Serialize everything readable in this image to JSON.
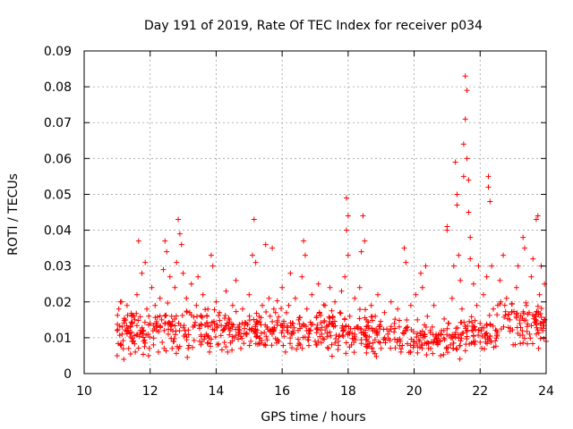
{
  "chart_data": {
    "type": "scatter",
    "title": "Day 191 of 2019, Rate Of TEC Index for receiver p034",
    "xlabel": "GPS time / hours",
    "ylabel": "ROTI / TECUs",
    "xlim": [
      10,
      24
    ],
    "ylim": [
      0,
      0.09
    ],
    "xticks": [
      10,
      12,
      14,
      16,
      18,
      20,
      22,
      24
    ],
    "xtick_labels": [
      "10",
      "12",
      "14",
      "16",
      "18",
      "20",
      "22",
      "24"
    ],
    "yticks": [
      0,
      0.01,
      0.02,
      0.03,
      0.04,
      0.05,
      0.06,
      0.07,
      0.08,
      0.09
    ],
    "ytick_labels": [
      "0",
      "0.01",
      "0.02",
      "0.03",
      "0.04",
      "0.05",
      "0.06",
      "0.07",
      "0.08",
      "0.09"
    ],
    "grid": true,
    "marker": "+",
    "color": "#ff0000",
    "series": [
      {
        "name": "ROTI",
        "points": [
          [
            11.0,
            0.012
          ],
          [
            11.0,
            0.005
          ],
          [
            11.05,
            0.018
          ],
          [
            11.1,
            0.008
          ],
          [
            11.1,
            0.02
          ],
          [
            11.15,
            0.011
          ],
          [
            11.2,
            0.004
          ],
          [
            11.25,
            0.015
          ],
          [
            11.3,
            0.019
          ],
          [
            11.35,
            0.007
          ],
          [
            11.4,
            0.013
          ],
          [
            11.45,
            0.009
          ],
          [
            11.5,
            0.016
          ],
          [
            11.55,
            0.006
          ],
          [
            11.6,
            0.022
          ],
          [
            11.65,
            0.037
          ],
          [
            11.7,
            0.012
          ],
          [
            11.75,
            0.028
          ],
          [
            11.8,
            0.009
          ],
          [
            11.85,
            0.031
          ],
          [
            11.9,
            0.018
          ],
          [
            11.95,
            0.005
          ],
          [
            12.0,
            0.014
          ],
          [
            12.05,
            0.024
          ],
          [
            12.1,
            0.008
          ],
          [
            12.15,
            0.019
          ],
          [
            12.2,
            0.012
          ],
          [
            12.25,
            0.006
          ],
          [
            12.3,
            0.021
          ],
          [
            12.35,
            0.015
          ],
          [
            12.4,
            0.029
          ],
          [
            12.45,
            0.037
          ],
          [
            12.5,
            0.034
          ],
          [
            12.55,
            0.011
          ],
          [
            12.6,
            0.027
          ],
          [
            12.65,
            0.016
          ],
          [
            12.7,
            0.009
          ],
          [
            12.75,
            0.024
          ],
          [
            12.8,
            0.031
          ],
          [
            12.85,
            0.043
          ],
          [
            12.9,
            0.039
          ],
          [
            12.95,
            0.036
          ],
          [
            13.0,
            0.028
          ],
          [
            13.05,
            0.012
          ],
          [
            13.1,
            0.021
          ],
          [
            13.15,
            0.007
          ],
          [
            13.2,
            0.017
          ],
          [
            13.25,
            0.025
          ],
          [
            13.3,
            0.013
          ],
          [
            13.4,
            0.019
          ],
          [
            13.45,
            0.027
          ],
          [
            13.5,
            0.009
          ],
          [
            13.55,
            0.016
          ],
          [
            13.6,
            0.022
          ],
          [
            13.7,
            0.011
          ],
          [
            13.75,
            0.018
          ],
          [
            13.8,
            0.006
          ],
          [
            13.85,
            0.033
          ],
          [
            13.9,
            0.03
          ],
          [
            13.95,
            0.014
          ],
          [
            14.0,
            0.02
          ],
          [
            14.05,
            0.008
          ],
          [
            14.1,
            0.017
          ],
          [
            14.2,
            0.012
          ],
          [
            14.3,
            0.023
          ],
          [
            14.35,
            0.006
          ],
          [
            14.4,
            0.015
          ],
          [
            14.5,
            0.019
          ],
          [
            14.55,
            0.01
          ],
          [
            14.6,
            0.026
          ],
          [
            14.7,
            0.013
          ],
          [
            14.75,
            0.007
          ],
          [
            14.8,
            0.018
          ],
          [
            14.9,
            0.011
          ],
          [
            15.0,
            0.022
          ],
          [
            15.05,
            0.009
          ],
          [
            15.1,
            0.033
          ],
          [
            15.15,
            0.043
          ],
          [
            15.2,
            0.031
          ],
          [
            15.3,
            0.016
          ],
          [
            15.4,
            0.019
          ],
          [
            15.45,
            0.008
          ],
          [
            15.5,
            0.036
          ],
          [
            15.55,
            0.013
          ],
          [
            15.6,
            0.021
          ],
          [
            15.7,
            0.035
          ],
          [
            15.75,
            0.012
          ],
          [
            15.8,
            0.017
          ],
          [
            15.9,
            0.009
          ],
          [
            16.0,
            0.024
          ],
          [
            16.05,
            0.014
          ],
          [
            16.1,
            0.006
          ],
          [
            16.2,
            0.019
          ],
          [
            16.25,
            0.028
          ],
          [
            16.3,
            0.011
          ],
          [
            16.4,
            0.021
          ],
          [
            16.5,
            0.015
          ],
          [
            16.55,
            0.008
          ],
          [
            16.6,
            0.027
          ],
          [
            16.65,
            0.037
          ],
          [
            16.7,
            0.033
          ],
          [
            16.75,
            0.018
          ],
          [
            16.8,
            0.012
          ],
          [
            16.9,
            0.022
          ],
          [
            17.0,
            0.009
          ],
          [
            17.05,
            0.016
          ],
          [
            17.1,
            0.025
          ],
          [
            17.2,
            0.011
          ],
          [
            17.3,
            0.019
          ],
          [
            17.4,
            0.007
          ],
          [
            17.45,
            0.024
          ],
          [
            17.5,
            0.014
          ],
          [
            17.6,
            0.02
          ],
          [
            17.7,
            0.009
          ],
          [
            17.75,
            0.017
          ],
          [
            17.8,
            0.023
          ],
          [
            17.85,
            0.012
          ],
          [
            17.9,
            0.027
          ],
          [
            17.95,
            0.049
          ],
          [
            17.95,
            0.04
          ],
          [
            18.0,
            0.044
          ],
          [
            18.0,
            0.033
          ],
          [
            18.05,
            0.016
          ],
          [
            18.1,
            0.008
          ],
          [
            18.2,
            0.021
          ],
          [
            18.3,
            0.013
          ],
          [
            18.35,
            0.024
          ],
          [
            18.4,
            0.034
          ],
          [
            18.45,
            0.044
          ],
          [
            18.5,
            0.037
          ],
          [
            18.55,
            0.015
          ],
          [
            18.6,
            0.009
          ],
          [
            18.7,
            0.019
          ],
          [
            18.8,
            0.012
          ],
          [
            18.9,
            0.022
          ],
          [
            19.0,
            0.007
          ],
          [
            19.1,
            0.017
          ],
          [
            19.2,
            0.011
          ],
          [
            19.3,
            0.02
          ],
          [
            19.4,
            0.014
          ],
          [
            19.5,
            0.018
          ],
          [
            19.6,
            0.006
          ],
          [
            19.7,
            0.035
          ],
          [
            19.75,
            0.031
          ],
          [
            19.8,
            0.013
          ],
          [
            19.9,
            0.019
          ],
          [
            20.0,
            0.009
          ],
          [
            20.05,
            0.022
          ],
          [
            20.1,
            0.015
          ],
          [
            20.2,
            0.028
          ],
          [
            20.25,
            0.024
          ],
          [
            20.3,
            0.011
          ],
          [
            20.35,
            0.03
          ],
          [
            20.4,
            0.016
          ],
          [
            20.5,
            0.007
          ],
          [
            20.55,
            0.013
          ],
          [
            20.6,
            0.019
          ],
          [
            20.7,
            0.009
          ],
          [
            20.8,
            0.005
          ],
          [
            20.9,
            0.012
          ],
          [
            21.0,
            0.041
          ],
          [
            21.0,
            0.04
          ],
          [
            21.05,
            0.014
          ],
          [
            21.1,
            0.008
          ],
          [
            21.15,
            0.021
          ],
          [
            21.2,
            0.03
          ],
          [
            21.25,
            0.059
          ],
          [
            21.3,
            0.05
          ],
          [
            21.3,
            0.047
          ],
          [
            21.35,
            0.033
          ],
          [
            21.4,
            0.026
          ],
          [
            21.45,
            0.018
          ],
          [
            21.5,
            0.055
          ],
          [
            21.5,
            0.064
          ],
          [
            21.55,
            0.071
          ],
          [
            21.55,
            0.083
          ],
          [
            21.6,
            0.079
          ],
          [
            21.6,
            0.06
          ],
          [
            21.65,
            0.054
          ],
          [
            21.65,
            0.045
          ],
          [
            21.7,
            0.038
          ],
          [
            21.7,
            0.032
          ],
          [
            21.75,
            0.012
          ],
          [
            21.8,
            0.025
          ],
          [
            21.85,
            0.009
          ],
          [
            21.9,
            0.019
          ],
          [
            21.95,
            0.03
          ],
          [
            22.0,
            0.014
          ],
          [
            22.05,
            0.007
          ],
          [
            22.1,
            0.022
          ],
          [
            22.15,
            0.011
          ],
          [
            22.2,
            0.027
          ],
          [
            22.25,
            0.055
          ],
          [
            22.25,
            0.052
          ],
          [
            22.3,
            0.048
          ],
          [
            22.35,
            0.03
          ],
          [
            22.4,
            0.018
          ],
          [
            22.5,
            0.012
          ],
          [
            22.6,
            0.026
          ],
          [
            22.7,
            0.033
          ],
          [
            22.8,
            0.021
          ],
          [
            22.9,
            0.015
          ],
          [
            23.0,
            0.008
          ],
          [
            23.1,
            0.024
          ],
          [
            23.15,
            0.03
          ],
          [
            23.2,
            0.014
          ],
          [
            23.3,
            0.038
          ],
          [
            23.35,
            0.035
          ],
          [
            23.4,
            0.019
          ],
          [
            23.5,
            0.011
          ],
          [
            23.55,
            0.027
          ],
          [
            23.6,
            0.032
          ],
          [
            23.65,
            0.016
          ],
          [
            23.7,
            0.043
          ],
          [
            23.75,
            0.044
          ],
          [
            23.8,
            0.022
          ],
          [
            23.85,
            0.03
          ],
          [
            23.9,
            0.012
          ],
          [
            23.95,
            0.025
          ],
          [
            24.0,
            0.009
          ]
        ],
        "dense_band": [
          {
            "from": 11.0,
            "to": 13.0,
            "low": 0.003,
            "high": 0.022
          },
          {
            "from": 13.0,
            "to": 16.0,
            "low": 0.004,
            "high": 0.021
          },
          {
            "from": 16.0,
            "to": 18.0,
            "low": 0.004,
            "high": 0.02
          },
          {
            "from": 18.0,
            "to": 20.0,
            "low": 0.003,
            "high": 0.019
          },
          {
            "from": 20.0,
            "to": 21.5,
            "low": 0.003,
            "high": 0.016
          },
          {
            "from": 21.5,
            "to": 22.5,
            "low": 0.004,
            "high": 0.019
          },
          {
            "from": 22.5,
            "to": 24.0,
            "low": 0.004,
            "high": 0.024
          }
        ]
      }
    ]
  }
}
